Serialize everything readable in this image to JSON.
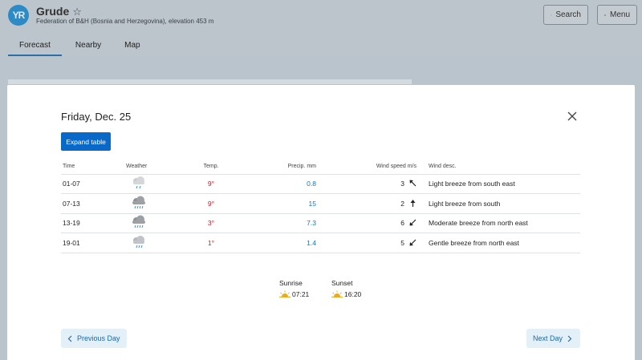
{
  "app": {
    "logo_text": "YR",
    "location": "Grude",
    "star": "☆",
    "subtitle": "Federation of B&H (Bosnia and Herzegovina), elevation 453 m",
    "search_label": "Search",
    "menu_label": "Menu",
    "tabs": [
      {
        "label": "Forecast",
        "active": true
      },
      {
        "label": "Nearby",
        "active": false
      },
      {
        "label": "Map",
        "active": false
      }
    ]
  },
  "modal": {
    "title": "Friday, Dec. 25",
    "expand_label": "Expand table",
    "columns": {
      "time": "Time",
      "weather": "Weather",
      "temp": "Temp.",
      "precip": "Precip. mm",
      "wind_speed": "Wind speed m/s",
      "wind_desc": "Wind desc."
    },
    "rows": [
      {
        "time": "01-07",
        "weather_icon": "light-rain-cloud-icon",
        "temp": "9°",
        "precip": "0.8",
        "wind_speed": "3",
        "wind_dir": "arrow-up-left-icon",
        "wind_desc": "Light breeze from south east"
      },
      {
        "time": "07-13",
        "weather_icon": "rain-cloud-icon",
        "temp": "9°",
        "precip": "15",
        "wind_speed": "2",
        "wind_dir": "arrow-up-icon",
        "wind_desc": "Light breeze from south"
      },
      {
        "time": "13-19",
        "weather_icon": "rain-cloud-icon",
        "temp": "3°",
        "precip": "7.3",
        "wind_speed": "6",
        "wind_dir": "arrow-down-left-icon",
        "wind_desc": "Moderate breeze from north east"
      },
      {
        "time": "19-01",
        "weather_icon": "light-rain-cloud-icon",
        "temp": "1°",
        "precip": "1.4",
        "wind_speed": "5",
        "wind_dir": "arrow-down-left-icon",
        "wind_desc": "Gentle breeze from north east"
      }
    ],
    "sunrise_label": "Sunrise",
    "sunrise_time": "07:21",
    "sunset_label": "Sunset",
    "sunset_time": "16:20",
    "prev_label": "Previous Day",
    "next_label": "Next Day"
  },
  "colors": {
    "accent": "#0a68c9",
    "temp": "#c8202a",
    "precip": "#1a74c2",
    "sun": "#f0a820"
  }
}
